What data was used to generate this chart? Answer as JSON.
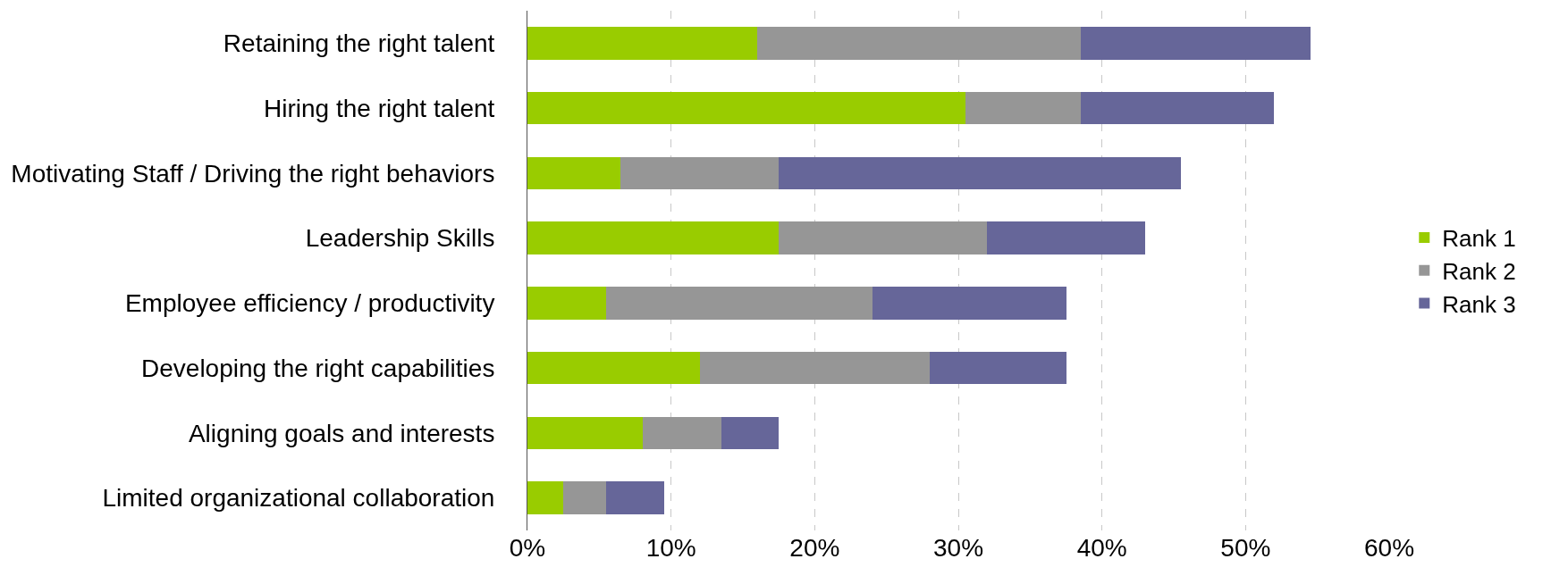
{
  "chart_data": {
    "type": "bar",
    "orientation": "horizontal",
    "stacked": true,
    "categories": [
      "Retaining the right talent",
      "Hiring the right talent",
      "Motivating Staff / Driving the right behaviors",
      "Leadership Skills",
      "Employee efficiency / productivity",
      "Developing the right capabilities",
      "Aligning goals and interests",
      "Limited organizational collaboration"
    ],
    "series": [
      {
        "name": "Rank 1",
        "color": "#99cc00",
        "values": [
          16,
          30.5,
          6.5,
          17.5,
          5.5,
          12,
          8,
          2.5
        ]
      },
      {
        "name": "Rank 2",
        "color": "#969696",
        "values": [
          22.5,
          8,
          11,
          14.5,
          18.5,
          16,
          5.5,
          3
        ]
      },
      {
        "name": "Rank 3",
        "color": "#666699",
        "values": [
          16,
          13.5,
          28,
          11,
          13.5,
          9.5,
          4,
          4
        ]
      }
    ],
    "xlim": [
      0,
      60
    ],
    "xticks": [
      {
        "value": 0,
        "label": "0%"
      },
      {
        "value": 10,
        "label": "10%"
      },
      {
        "value": 20,
        "label": "20%"
      },
      {
        "value": 30,
        "label": "30%"
      },
      {
        "value": 40,
        "label": "40%"
      },
      {
        "value": 50,
        "label": "50%"
      },
      {
        "value": 60,
        "label": "60%"
      }
    ],
    "grid": "x",
    "legend": "right"
  }
}
